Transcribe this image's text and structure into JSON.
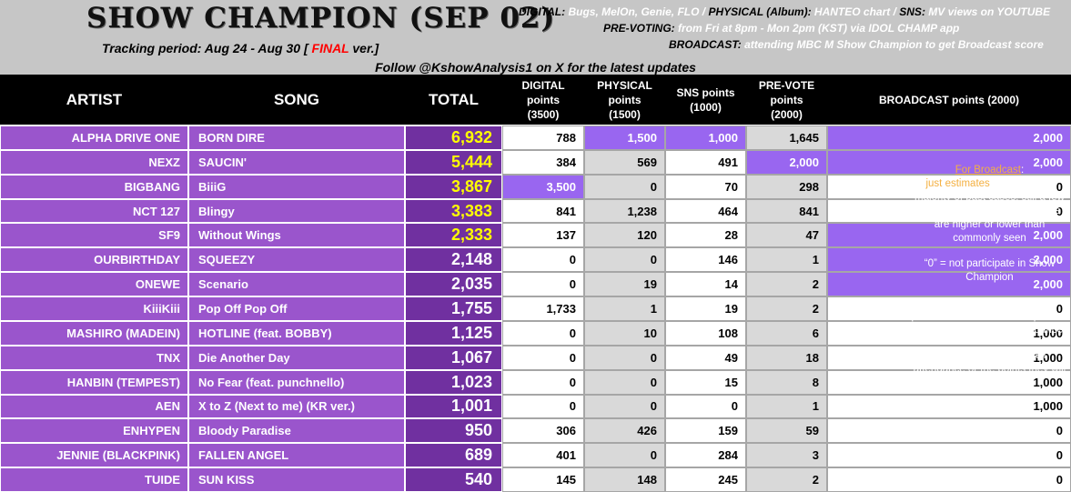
{
  "header": {
    "title": "SHOW CHAMPION (SEP 02)",
    "tracking": [
      {
        "text": "Tracking period: Aug 24 - Aug 30 [ ",
        "color": "#000000"
      },
      {
        "text": "FINAL",
        "color": "#ff0000"
      },
      {
        "text": " ver.]",
        "color": "#000000"
      }
    ],
    "sources": [
      [
        {
          "text": "DIGITAL:",
          "color": "#000000"
        },
        {
          "text": " Bugs, MelOn, Genie, FLO / ",
          "color": "#ffffff"
        },
        {
          "text": "PHYSICAL (Album):",
          "color": "#000000"
        },
        {
          "text": " HANTEO chart / ",
          "color": "#ffffff"
        },
        {
          "text": "SNS:",
          "color": "#000000"
        },
        {
          "text": " MV views on YOUTUBE",
          "color": "#ffffff"
        }
      ],
      [
        {
          "text": "PRE-VOTING:",
          "color": "#000000"
        },
        {
          "text": " from Fri at 8pm - Mon 2pm (KST) via IDOL CHAMP app",
          "color": "#ffffff"
        }
      ],
      [
        {
          "text": "BROADCAST:",
          "color": "#000000"
        },
        {
          "text": " attending MBC M Show Champion to get Broadcast score",
          "color": "#ffffff"
        }
      ]
    ],
    "follow": "Follow @KshowAnalysis1 on X for the latest updates"
  },
  "table": {
    "columns": [
      [
        "ARTIST"
      ],
      [
        "SONG"
      ],
      [
        "TOTAL"
      ],
      [
        "DIGITAL",
        "points",
        "(3500)"
      ],
      [
        "PHYSICAL",
        "points",
        "(1500)"
      ],
      [
        "SNS points",
        "(1000)"
      ],
      [
        "PRE-VOTE",
        "points",
        "(2000)"
      ],
      [
        "BROADCAST points (2000)"
      ]
    ],
    "column_colors": [
      "#ffffff",
      "#d9d9d9",
      "#ffffff",
      "#d9d9d9",
      "#ffffff"
    ],
    "highlight_color": "#9966f0",
    "rows": [
      {
        "artist": "ALPHA DRIVE ONE",
        "song": "BORN DIRE",
        "total": "6,932",
        "total_color": "#ffff00",
        "points": [
          "788",
          "1,500",
          "1,000",
          "1,645",
          "2,000"
        ],
        "highlight": [
          false,
          true,
          true,
          false,
          true
        ]
      },
      {
        "artist": "NEXZ",
        "song": "SAUCIN'",
        "total": "5,444",
        "total_color": "#ffff00",
        "points": [
          "384",
          "569",
          "491",
          "2,000",
          "2,000"
        ],
        "highlight": [
          false,
          false,
          false,
          true,
          true
        ]
      },
      {
        "artist": "BIGBANG",
        "song": "BiiiG",
        "total": "3,867",
        "total_color": "#ffff00",
        "points": [
          "3,500",
          "0",
          "70",
          "298",
          "0"
        ],
        "highlight": [
          true,
          false,
          false,
          false,
          false
        ]
      },
      {
        "artist": "NCT 127",
        "song": "Blingy",
        "total": "3,383",
        "total_color": "#ffff00",
        "points": [
          "841",
          "1,238",
          "464",
          "841",
          "0"
        ],
        "highlight": [
          false,
          false,
          false,
          false,
          false
        ]
      },
      {
        "artist": "SF9",
        "song": "Without Wings",
        "total": "2,333",
        "total_color": "#ffff00",
        "points": [
          "137",
          "120",
          "28",
          "47",
          "2,000"
        ],
        "highlight": [
          false,
          false,
          false,
          false,
          true
        ]
      },
      {
        "artist": "OURBIRTHDAY",
        "song": "SQUEEZY",
        "total": "2,148",
        "total_color": "#ffffff",
        "points": [
          "0",
          "0",
          "146",
          "1",
          "2,000"
        ],
        "highlight": [
          false,
          false,
          false,
          false,
          true
        ]
      },
      {
        "artist": "ONEWE",
        "song": "Scenario",
        "total": "2,035",
        "total_color": "#ffffff",
        "points": [
          "0",
          "19",
          "14",
          "2",
          "2,000"
        ],
        "highlight": [
          false,
          false,
          false,
          false,
          true
        ]
      },
      {
        "artist": "KiiiKiii",
        "song": "Pop Off Pop Off",
        "total": "1,755",
        "total_color": "#ffffff",
        "points": [
          "1,733",
          "1",
          "19",
          "2",
          "0"
        ],
        "highlight": [
          false,
          false,
          false,
          false,
          false
        ]
      },
      {
        "artist": "MASHIRO (MADEIN)",
        "song": "HOTLINE (feat. BOBBY)",
        "total": "1,125",
        "total_color": "#ffffff",
        "points": [
          "0",
          "10",
          "108",
          "6",
          "1,000"
        ],
        "highlight": [
          false,
          false,
          false,
          false,
          false
        ]
      },
      {
        "artist": "TNX",
        "song": "Die Another Day",
        "total": "1,067",
        "total_color": "#ffffff",
        "points": [
          "0",
          "0",
          "49",
          "18",
          "1,000"
        ],
        "highlight": [
          false,
          false,
          false,
          false,
          false
        ]
      },
      {
        "artist": "HANBIN (TEMPEST)",
        "song": "No Fear (feat. punchnello)",
        "total": "1,023",
        "total_color": "#ffffff",
        "points": [
          "0",
          "0",
          "15",
          "8",
          "1,000"
        ],
        "highlight": [
          false,
          false,
          false,
          false,
          false
        ]
      },
      {
        "artist": "AEN",
        "song": "X to Z (Next to me) (KR ver.)",
        "total": "1,001",
        "total_color": "#ffffff",
        "points": [
          "0",
          "0",
          "0",
          "1",
          "1,000"
        ],
        "highlight": [
          false,
          false,
          false,
          false,
          false
        ]
      },
      {
        "artist": "ENHYPEN",
        "song": "Bloody Paradise",
        "total": "950",
        "total_color": "#ffffff",
        "points": [
          "306",
          "426",
          "159",
          "59",
          "0"
        ],
        "highlight": [
          false,
          false,
          false,
          false,
          false
        ]
      },
      {
        "artist": "JENNIE (BLACKPINK)",
        "song": "FALLEN ANGEL",
        "total": "689",
        "total_color": "#ffffff",
        "points": [
          "401",
          "0",
          "284",
          "3",
          "0"
        ],
        "highlight": [
          false,
          false,
          false,
          false,
          false
        ]
      },
      {
        "artist": "TUIDE",
        "song": "SUN KISS",
        "total": "540",
        "total_color": "#ffffff",
        "points": [
          "145",
          "148",
          "245",
          "2",
          "0"
        ],
        "highlight": [
          false,
          false,
          false,
          false,
          false
        ]
      }
    ]
  },
  "note": [
    [
      {
        "text": "For Broadcast",
        "color": "#f4b042",
        "underline": true
      },
      {
        "text": ":",
        "color": "#ffffff"
      }
    ],
    [
      {
        "text": "just estimates",
        "color": "#f4b042"
      },
      {
        "text": " based on the majority of past cases, still a few cases where broadcast scores are higher or lower than commonly seen",
        "color": "#ffffff"
      }
    ],
    [
      {
        "text": "“0” = not participate in Show Champion",
        "color": "#ffffff"
      }
    ],
    [
      {
        "text": "“600 ~ 2000” = pre-recorded / performed on Show Champion on the day the results are announced",
        "color": "#ffffff"
      }
    ],
    [
      {
        "text": "“?” = not sure about their attendance or the points they will receive",
        "color": "#ffffff"
      }
    ]
  ]
}
